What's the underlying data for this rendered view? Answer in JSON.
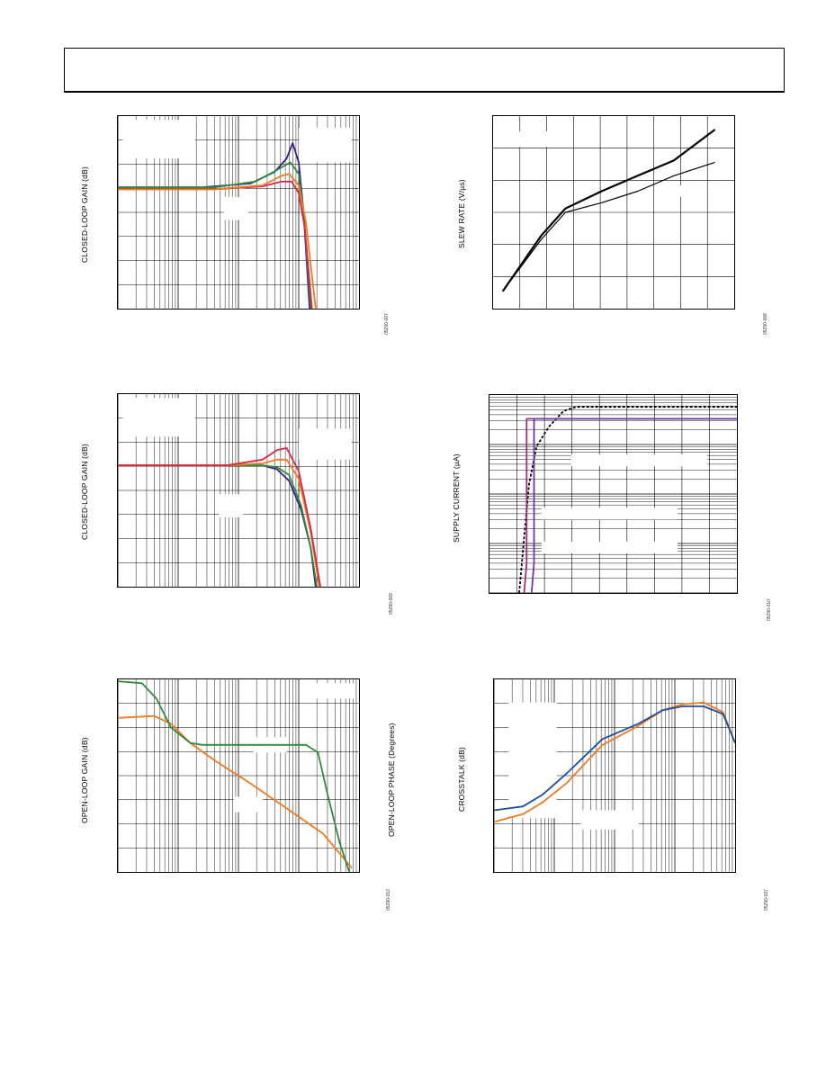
{
  "header": {},
  "colors": {
    "purple": "#3a1e8c",
    "green": "#2e8b3e",
    "orange": "#f07a1e",
    "red": "#d6284a",
    "blue": "#1f4e9a",
    "magenta": "#a0307a",
    "violet": "#6a3aa0",
    "black": "#000000"
  },
  "chart_data": [
    {
      "id": "c1",
      "type": "line",
      "ylabel": "CLOSED-LOOP GAIN (dB)",
      "code": "05290-007",
      "xscale": "log",
      "grid": true,
      "legend": "none",
      "series": [
        {
          "color": "purple",
          "points": [
            [
              0,
              0.37
            ],
            [
              0.35,
              0.37
            ],
            [
              0.55,
              0.35
            ],
            [
              0.65,
              0.29
            ],
            [
              0.7,
              0.22
            ],
            [
              0.725,
              0.14
            ],
            [
              0.75,
              0.24
            ],
            [
              0.77,
              0.5
            ],
            [
              0.795,
              1.0
            ]
          ]
        },
        {
          "color": "green",
          "points": [
            [
              0,
              0.37
            ],
            [
              0.4,
              0.37
            ],
            [
              0.57,
              0.34
            ],
            [
              0.66,
              0.28
            ],
            [
              0.715,
              0.24
            ],
            [
              0.75,
              0.3
            ],
            [
              0.77,
              0.5
            ],
            [
              0.8,
              1.0
            ]
          ]
        },
        {
          "color": "red",
          "points": [
            [
              0,
              0.38
            ],
            [
              0.4,
              0.38
            ],
            [
              0.6,
              0.365
            ],
            [
              0.68,
              0.34
            ],
            [
              0.72,
              0.34
            ],
            [
              0.75,
              0.4
            ],
            [
              0.775,
              0.58
            ],
            [
              0.805,
              1.0
            ]
          ]
        },
        {
          "color": "orange",
          "points": [
            [
              0,
              0.38
            ],
            [
              0.4,
              0.38
            ],
            [
              0.6,
              0.36
            ],
            [
              0.68,
              0.31
            ],
            [
              0.71,
              0.3
            ],
            [
              0.75,
              0.36
            ],
            [
              0.78,
              0.55
            ],
            [
              0.82,
              1.0
            ]
          ]
        }
      ]
    },
    {
      "id": "c2",
      "type": "line",
      "ylabel": "SLEW RATE (V/µs)",
      "code": "05290-008",
      "xscale": "linear",
      "grid": true,
      "legend": "none",
      "series": [
        {
          "color": "black",
          "width": 2.2,
          "points": [
            [
              0.04,
              0.91
            ],
            [
              0.2,
              0.62
            ],
            [
              0.3,
              0.48
            ],
            [
              0.45,
              0.39
            ],
            [
              0.6,
              0.31
            ],
            [
              0.75,
              0.23
            ],
            [
              0.92,
              0.07
            ]
          ]
        },
        {
          "color": "black",
          "width": 1.2,
          "points": [
            [
              0.04,
              0.91
            ],
            [
              0.2,
              0.64
            ],
            [
              0.3,
              0.5
            ],
            [
              0.45,
              0.45
            ],
            [
              0.6,
              0.39
            ],
            [
              0.75,
              0.31
            ],
            [
              0.92,
              0.24
            ]
          ]
        }
      ]
    },
    {
      "id": "c3",
      "type": "line",
      "ylabel": "CLOSED-LOOP GAIN (dB)",
      "code": "05290-009",
      "xscale": "log",
      "grid": true,
      "legend": "none",
      "series": [
        {
          "color": "purple",
          "points": [
            [
              0,
              0.37
            ],
            [
              0.45,
              0.37
            ],
            [
              0.6,
              0.37
            ],
            [
              0.66,
              0.39
            ],
            [
              0.71,
              0.45
            ],
            [
              0.76,
              0.6
            ],
            [
              0.8,
              0.8
            ],
            [
              0.82,
              1.0
            ]
          ]
        },
        {
          "color": "green",
          "points": [
            [
              0,
              0.37
            ],
            [
              0.45,
              0.37
            ],
            [
              0.6,
              0.37
            ],
            [
              0.66,
              0.38
            ],
            [
              0.71,
              0.42
            ],
            [
              0.76,
              0.58
            ],
            [
              0.8,
              0.8
            ],
            [
              0.825,
              1.0
            ]
          ]
        },
        {
          "color": "orange",
          "points": [
            [
              0,
              0.37
            ],
            [
              0.45,
              0.37
            ],
            [
              0.6,
              0.36
            ],
            [
              0.66,
              0.34
            ],
            [
              0.7,
              0.34
            ],
            [
              0.75,
              0.44
            ],
            [
              0.8,
              0.72
            ],
            [
              0.835,
              1.0
            ]
          ]
        },
        {
          "color": "red",
          "points": [
            [
              0,
              0.37
            ],
            [
              0.45,
              0.37
            ],
            [
              0.6,
              0.34
            ],
            [
              0.66,
              0.29
            ],
            [
              0.7,
              0.28
            ],
            [
              0.75,
              0.4
            ],
            [
              0.8,
              0.7
            ],
            [
              0.84,
              1.0
            ]
          ]
        }
      ]
    },
    {
      "id": "c4",
      "type": "line",
      "ylabel": "SUPPLY CURRENT (µA)",
      "code": "05290-010",
      "xscale": "linear",
      "yscale": "log",
      "grid": true,
      "legend": "none",
      "series": [
        {
          "color": "black",
          "dash": true,
          "points": [
            [
              0.12,
              1.0
            ],
            [
              0.14,
              0.72
            ],
            [
              0.16,
              0.45
            ],
            [
              0.19,
              0.26
            ],
            [
              0.24,
              0.16
            ],
            [
              0.3,
              0.08
            ],
            [
              0.35,
              0.06
            ],
            [
              1.0,
              0.06
            ]
          ]
        },
        {
          "color": "magenta",
          "points": [
            [
              0.14,
              1.0
            ],
            [
              0.15,
              0.85
            ],
            [
              0.15,
              0.12
            ],
            [
              1.0,
              0.12
            ]
          ]
        },
        {
          "color": "violet",
          "points": [
            [
              0.17,
              1.0
            ],
            [
              0.18,
              0.85
            ],
            [
              0.18,
              0.12
            ],
            [
              1.0,
              0.12
            ]
          ]
        }
      ]
    },
    {
      "id": "c5",
      "type": "line",
      "ylabel": "OPEN-LOOP GAIN (dB)",
      "y2label": "OPEN-LOOP PHASE (Degrees)",
      "code": "05290-012",
      "xscale": "log",
      "grid": true,
      "legend": "none",
      "series": [
        {
          "color": "orange",
          "points": [
            [
              0,
              0.2
            ],
            [
              0.15,
              0.19
            ],
            [
              0.22,
              0.23
            ],
            [
              0.3,
              0.33
            ],
            [
              0.4,
              0.42
            ],
            [
              0.55,
              0.54
            ],
            [
              0.7,
              0.67
            ],
            [
              0.85,
              0.8
            ],
            [
              0.97,
              0.98
            ]
          ]
        },
        {
          "color": "green",
          "points": [
            [
              0,
              0.01
            ],
            [
              0.1,
              0.02
            ],
            [
              0.16,
              0.1
            ],
            [
              0.22,
              0.25
            ],
            [
              0.3,
              0.33
            ],
            [
              0.35,
              0.34
            ],
            [
              0.78,
              0.34
            ],
            [
              0.83,
              0.38
            ],
            [
              0.87,
              0.6
            ],
            [
              0.92,
              0.85
            ],
            [
              0.96,
              1.0
            ]
          ]
        }
      ]
    },
    {
      "id": "c6",
      "type": "line",
      "ylabel": "CROSSTALK (dB)",
      "code": "05290-037",
      "xscale": "log",
      "grid": true,
      "legend": "none",
      "series": [
        {
          "color": "orange",
          "points": [
            [
              0,
              0.74
            ],
            [
              0.12,
              0.7
            ],
            [
              0.2,
              0.64
            ],
            [
              0.3,
              0.54
            ],
            [
              0.45,
              0.34
            ],
            [
              0.6,
              0.24
            ],
            [
              0.7,
              0.16
            ],
            [
              0.78,
              0.13
            ],
            [
              0.87,
              0.12
            ],
            [
              0.95,
              0.17
            ],
            [
              1.0,
              0.33
            ]
          ]
        },
        {
          "color": "blue",
          "points": [
            [
              0,
              0.68
            ],
            [
              0.12,
              0.66
            ],
            [
              0.2,
              0.6
            ],
            [
              0.3,
              0.49
            ],
            [
              0.45,
              0.31
            ],
            [
              0.6,
              0.23
            ],
            [
              0.7,
              0.16
            ],
            [
              0.78,
              0.14
            ],
            [
              0.87,
              0.14
            ],
            [
              0.95,
              0.18
            ],
            [
              1.0,
              0.33
            ]
          ]
        }
      ]
    }
  ]
}
